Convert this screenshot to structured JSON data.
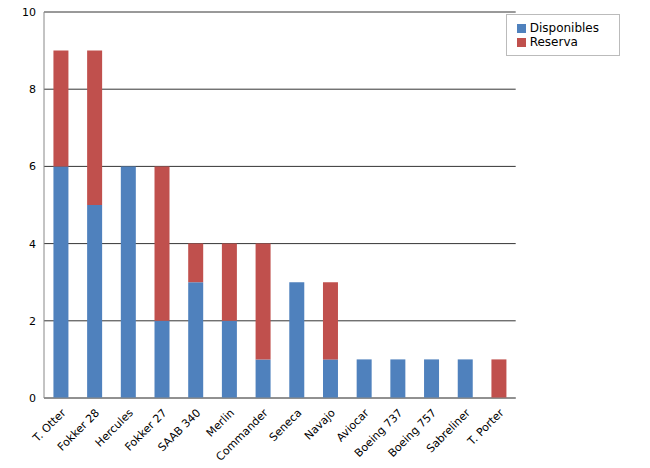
{
  "chart_data": {
    "type": "bar",
    "stacked": true,
    "categories": [
      "T. Otter",
      "Fokker 28",
      "Hercules",
      "Fokker 27",
      "SAAB 340",
      "Merlin",
      "Commander",
      "Seneca",
      "Navajo",
      "Aviocar",
      "Boeing 737",
      "Boeing 757",
      "Sabreliner",
      "T. Porter"
    ],
    "series": [
      {
        "name": "Disponibles",
        "color": "#4f81bd",
        "values": [
          6,
          5,
          6,
          2,
          3,
          2,
          1,
          3,
          1,
          1,
          1,
          1,
          1,
          0
        ]
      },
      {
        "name": "Reserva",
        "color": "#c0504d",
        "values": [
          3,
          4,
          0,
          4,
          1,
          2,
          3,
          0,
          2,
          0,
          0,
          0,
          0,
          1
        ]
      }
    ],
    "ylim": [
      0,
      10
    ],
    "yticks": [
      0,
      2,
      4,
      6,
      8,
      10
    ],
    "grid": true,
    "legend": "upper right"
  }
}
